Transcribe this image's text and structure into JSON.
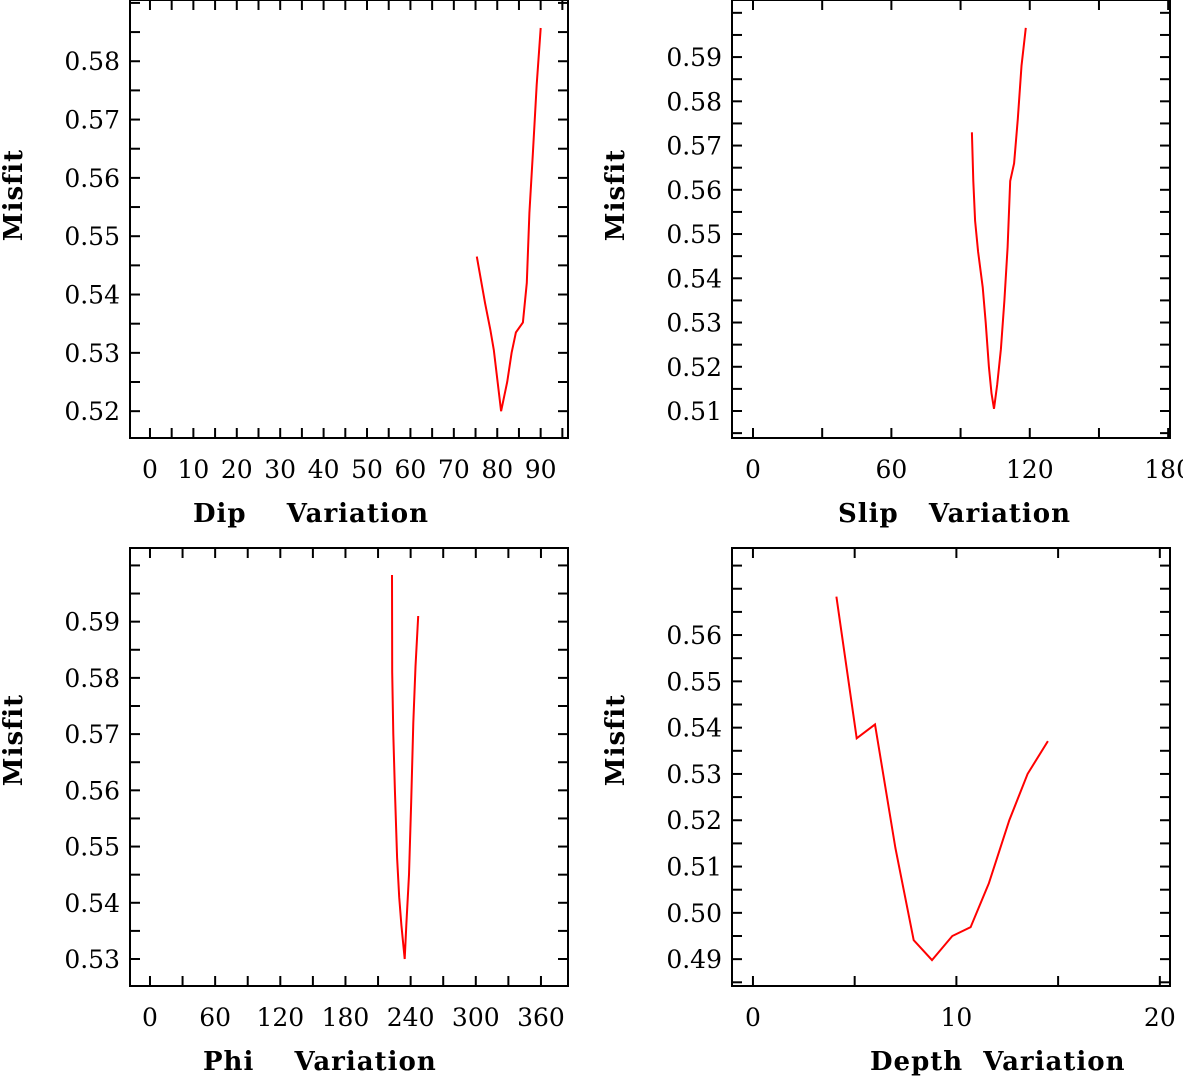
{
  "chart_data": [
    {
      "type": "line",
      "title": "",
      "xlabel": "Dip    Variation",
      "ylabel": "Misfit",
      "xlim": [
        -4.6,
        96.3
      ],
      "ylim": [
        0.5154,
        0.5905
      ],
      "xticks": [
        0,
        10,
        20,
        30,
        40,
        50,
        60,
        70,
        80,
        90
      ],
      "xtick_labels": [
        "0",
        "10",
        "20",
        "30",
        "40",
        "50",
        "60",
        "70",
        "80",
        "90"
      ],
      "yticks": [
        0.52,
        0.53,
        0.54,
        0.55,
        0.56,
        0.57,
        0.58
      ],
      "ytick_labels": [
        "0.52",
        "0.53",
        "0.54",
        "0.55",
        "0.56",
        "0.57",
        "0.58"
      ],
      "grid": false,
      "color": "#ff0000",
      "x": [
        75.3,
        77.2,
        78.4,
        79.2,
        80.9,
        82.3,
        83.3,
        84.3,
        85.9,
        86.8,
        87.4,
        88.2,
        89.1,
        90.0
      ],
      "y": [
        0.5465,
        0.5385,
        0.534,
        0.5305,
        0.52,
        0.525,
        0.53,
        0.5335,
        0.5352,
        0.542,
        0.554,
        0.564,
        0.576,
        0.5857
      ]
    },
    {
      "type": "line",
      "title": "",
      "xlabel": "Slip   Variation",
      "ylabel": "Misfit",
      "xlim": [
        -9.1,
        180.8
      ],
      "ylim": [
        0.5039,
        0.6029
      ],
      "xticks": [
        0,
        60,
        120,
        180
      ],
      "xtick_labels": [
        "0",
        "60",
        "120",
        "180"
      ],
      "yticks": [
        0.51,
        0.52,
        0.53,
        0.54,
        0.55,
        0.56,
        0.57,
        0.58,
        0.59
      ],
      "ytick_labels": [
        "0.51",
        "0.52",
        "0.53",
        "0.54",
        "0.55",
        "0.56",
        "0.57",
        "0.58",
        "0.59"
      ],
      "grid": false,
      "color": "#ff0000",
      "x": [
        94.9,
        95.5,
        96.3,
        97.6,
        99.6,
        100.9,
        102.3,
        103.4,
        104.5,
        105.9,
        107.5,
        109.0,
        110.4,
        111.5,
        113.2,
        114.8,
        116.4,
        118.3
      ],
      "y": [
        0.573,
        0.562,
        0.553,
        0.546,
        0.538,
        0.53,
        0.52,
        0.514,
        0.5105,
        0.516,
        0.524,
        0.535,
        0.547,
        0.562,
        0.566,
        0.576,
        0.588,
        0.5966
      ]
    },
    {
      "type": "line",
      "title": "",
      "xlabel": "Phi    Variation",
      "ylabel": "Misfit",
      "xlim": [
        -18.4,
        384.9
      ],
      "ylim": [
        0.5252,
        0.6031
      ],
      "xticks": [
        0,
        60,
        120,
        180,
        240,
        300,
        360
      ],
      "xtick_labels": [
        "0",
        "60",
        "120",
        "180",
        "240",
        "300",
        "360"
      ],
      "yticks": [
        0.53,
        0.54,
        0.55,
        0.56,
        0.57,
        0.58,
        0.59
      ],
      "ytick_labels": [
        "0.53",
        "0.54",
        "0.55",
        "0.56",
        "0.57",
        "0.58",
        "0.59"
      ],
      "grid": false,
      "color": "#ff0000",
      "x": [
        222.8,
        223.0,
        224.0,
        225.5,
        227.5,
        229.5,
        231.5,
        233.5,
        234.5,
        236.0,
        238.5,
        240.5,
        242.5,
        244.5,
        247.0
      ],
      "y": [
        0.5983,
        0.581,
        0.57,
        0.56,
        0.548,
        0.541,
        0.536,
        0.532,
        0.53,
        0.536,
        0.545,
        0.558,
        0.572,
        0.582,
        0.591
      ]
    },
    {
      "type": "line",
      "title": "",
      "xlabel": "Depth  Variation",
      "ylabel": "Misfit",
      "xlim": [
        -1.03,
        20.5
      ],
      "ylim": [
        0.4842,
        0.5788
      ],
      "xticks": [
        0,
        10,
        20
      ],
      "xtick_labels": [
        "0",
        "10",
        "20"
      ],
      "yticks": [
        0.49,
        0.5,
        0.51,
        0.52,
        0.53,
        0.54,
        0.55,
        0.56
      ],
      "ytick_labels": [
        "0.49",
        "0.50",
        "0.51",
        "0.52",
        "0.53",
        "0.54",
        "0.55",
        "0.56"
      ],
      "grid": false,
      "color": "#ff0000",
      "x": [
        4.1,
        5.1,
        6.0,
        7.0,
        7.9,
        8.8,
        9.8,
        10.7,
        11.6,
        12.6,
        13.5,
        14.5
      ],
      "y": [
        0.5683,
        0.5377,
        0.5407,
        0.514,
        0.4941,
        0.4898,
        0.495,
        0.4969,
        0.5064,
        0.52,
        0.53,
        0.5371
      ]
    }
  ]
}
